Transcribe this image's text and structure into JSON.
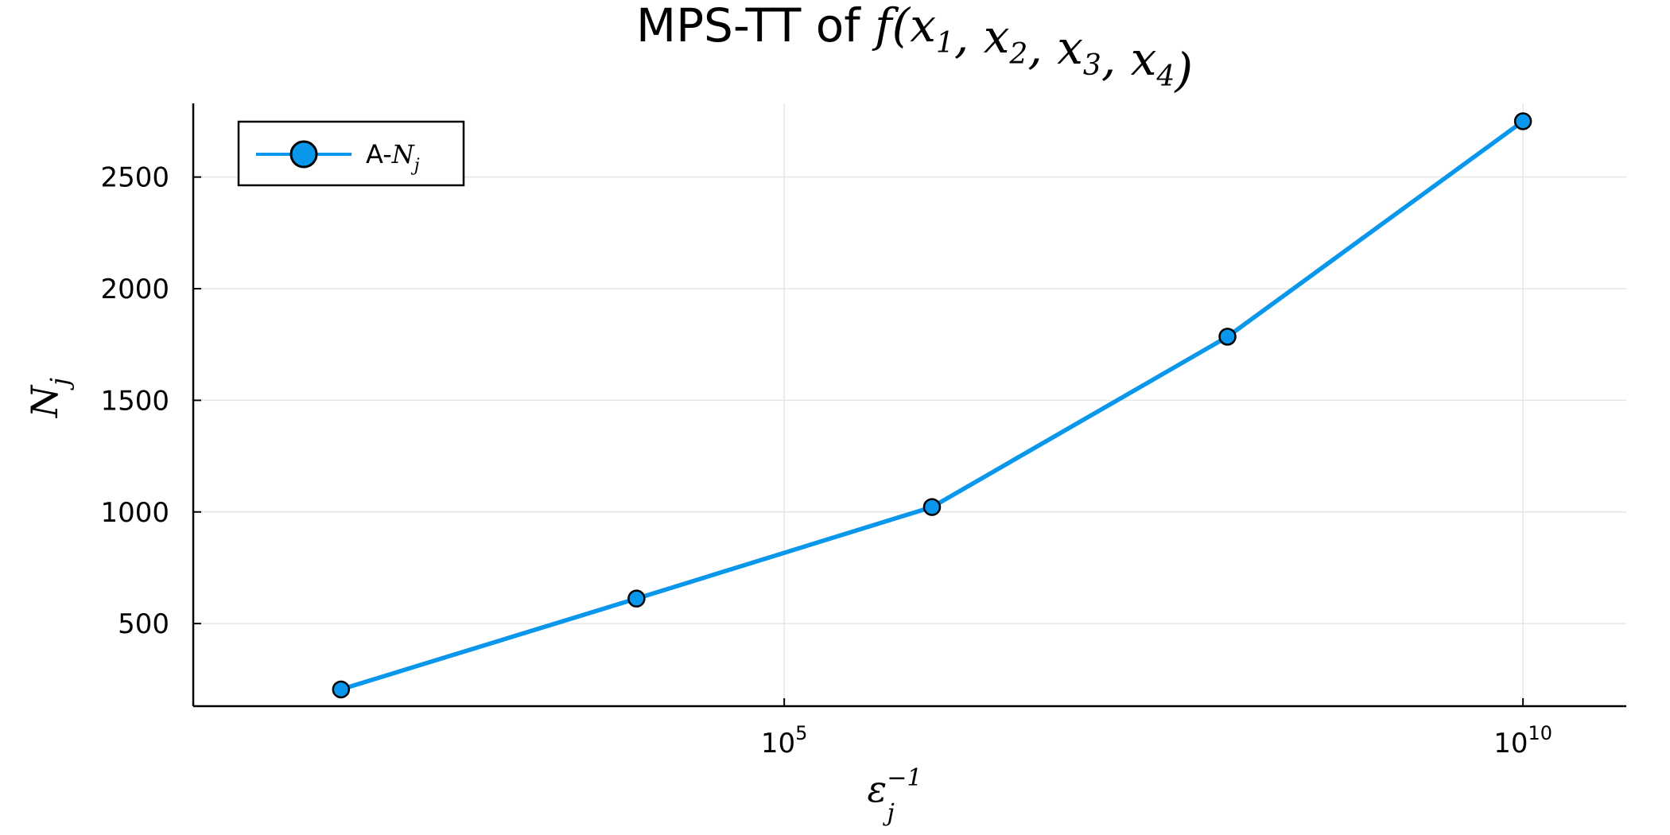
{
  "chart_data": {
    "type": "line",
    "title": {
      "prefix": "MPS-TT of ",
      "math": "f(x1, x2, x3, x4)"
    },
    "xlabel": {
      "base": "ε",
      "sup": "−1",
      "sub": "j"
    },
    "ylabel": {
      "base": "N",
      "sub": "j"
    },
    "x_scale": "log10",
    "xlim": [
      10,
      50000000000.0
    ],
    "ylim": [
      130,
      2830
    ],
    "x_ticks": [
      {
        "value": 100000,
        "base": "10",
        "exp": "5"
      },
      {
        "value": 10000000000,
        "base": "10",
        "exp": "10"
      }
    ],
    "y_ticks": [
      500,
      1000,
      1500,
      2000,
      2500
    ],
    "grid": true,
    "legend": {
      "position": "top-left",
      "prefix": "A-",
      "math_base": "N",
      "math_sub": "j"
    },
    "series": [
      {
        "name": "A-N_j",
        "color": "#0997ec",
        "x": [
          100,
          10000,
          1000000,
          100000000,
          10000000000
        ],
        "y": [
          205,
          612,
          1022,
          1785,
          2750
        ]
      }
    ]
  }
}
